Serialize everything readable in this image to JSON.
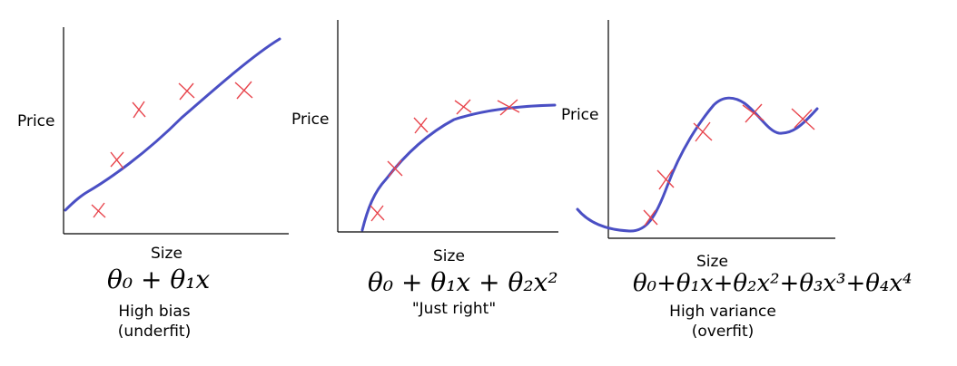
{
  "panels": [
    {
      "ylabel": "Price",
      "xlabel": "Size",
      "formula": "θ₀ + θ₁x",
      "caption_line1": "High bias",
      "caption_line2": "(underfit)"
    },
    {
      "ylabel": "Price",
      "xlabel": "Size",
      "formula": "θ₀ + θ₁x + θ₂x²",
      "caption_line1": "\"Just right\"",
      "caption_line2": ""
    },
    {
      "ylabel": "Price",
      "xlabel": "Size",
      "formula": "θ₀+θ₁x+θ₂x²+θ₃x³+θ₄x⁴",
      "caption_line1": "High variance",
      "caption_line2": "(overfit)"
    }
  ],
  "colors": {
    "curve": "#4a4fc4",
    "points": "#e8454d",
    "axes": "#000000"
  },
  "marker_icon": "x-cross"
}
